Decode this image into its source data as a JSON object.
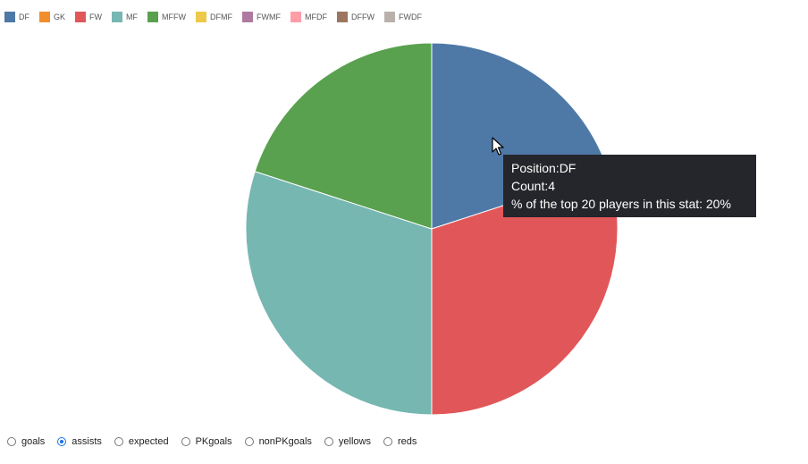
{
  "legend": [
    {
      "label": "DF",
      "color": "#4e79a7"
    },
    {
      "label": "GK",
      "color": "#f28e2c"
    },
    {
      "label": "FW",
      "color": "#e15759"
    },
    {
      "label": "MF",
      "color": "#76b7b2"
    },
    {
      "label": "MFFW",
      "color": "#59a14f"
    },
    {
      "label": "DFMF",
      "color": "#edc949"
    },
    {
      "label": "FWMF",
      "color": "#af7aa1"
    },
    {
      "label": "MFDF",
      "color": "#ff9da7"
    },
    {
      "label": "DFFW",
      "color": "#9c755f"
    },
    {
      "label": "FWDF",
      "color": "#bab0ab"
    }
  ],
  "chart_data": {
    "type": "pie",
    "categories": [
      "DF",
      "FW",
      "MF",
      "MFFW"
    ],
    "values": [
      4,
      6,
      6,
      4
    ],
    "colors": [
      "#4e79a7",
      "#e15759",
      "#76b7b2",
      "#59a14f"
    ],
    "start_angle_deg": 0,
    "direction": "clockwise",
    "slice_stroke": "#ffffff"
  },
  "tooltip": {
    "line1": "Position:DF",
    "line2": "Count:4",
    "line3": "% of the top 20 players in this stat: 20%"
  },
  "stat_options": [
    {
      "label": "goals",
      "checked": false
    },
    {
      "label": "assists",
      "checked": true
    },
    {
      "label": "expected",
      "checked": false
    },
    {
      "label": "PKgoals",
      "checked": false
    },
    {
      "label": "nonPKgoals",
      "checked": false
    },
    {
      "label": "yellows",
      "checked": false
    },
    {
      "label": "reds",
      "checked": false
    }
  ]
}
